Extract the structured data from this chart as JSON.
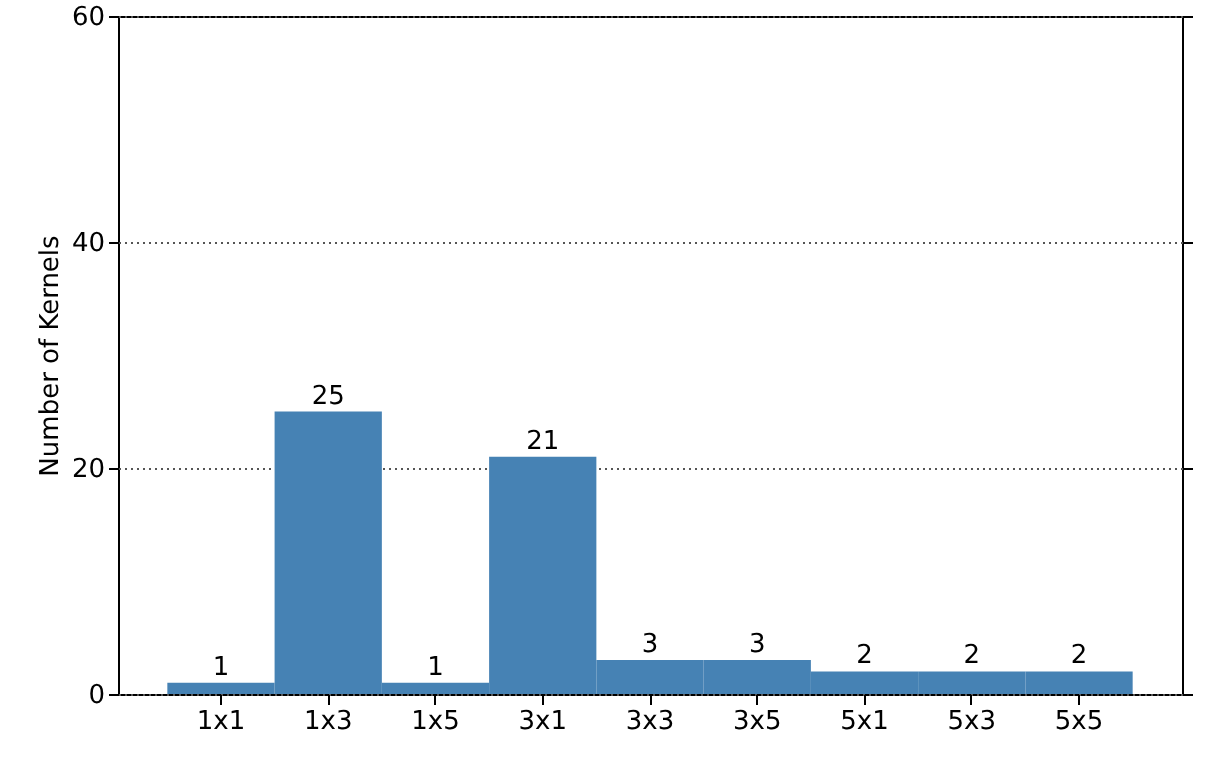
{
  "chart_data": {
    "type": "bar",
    "categories": [
      "1x1",
      "1x3",
      "1x5",
      "3x1",
      "3x3",
      "3x5",
      "5x1",
      "5x3",
      "5x5"
    ],
    "values": [
      1,
      25,
      1,
      21,
      3,
      3,
      2,
      2,
      2
    ],
    "color": "#4682b4",
    "ylabel": "Number of Kernels",
    "ylim": [
      0,
      60
    ],
    "yticks": [
      0,
      20,
      40,
      60
    ],
    "grid": "y",
    "data_labels": true
  }
}
